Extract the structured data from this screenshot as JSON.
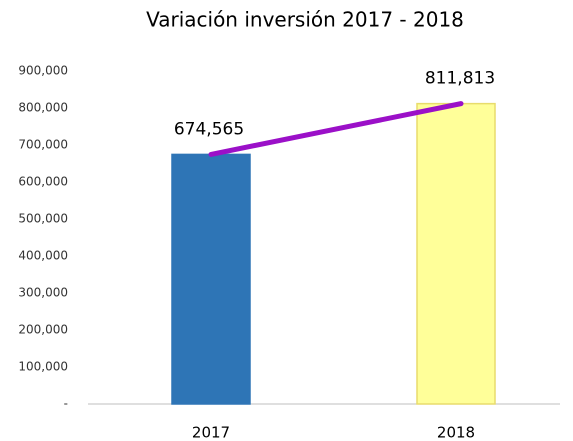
{
  "chart_data": {
    "type": "bar",
    "title": "Variación inversión 2017 - 2018",
    "categories": [
      "2017",
      "2018"
    ],
    "values": [
      674565,
      811813
    ],
    "value_labels": [
      "674,565",
      "811,813"
    ],
    "colors": [
      "#2e75b6",
      "#ffff99"
    ],
    "edgecolors": [
      "#2e75b6",
      "#e8dc6c"
    ],
    "line_color": "#9b10c8",
    "ylim": [
      0,
      900000
    ],
    "yticks": [
      {
        "value": 0,
        "label": "-"
      },
      {
        "value": 100000,
        "label": "100,000"
      },
      {
        "value": 200000,
        "label": "200,000"
      },
      {
        "value": 300000,
        "label": "300,000"
      },
      {
        "value": 400000,
        "label": "400,000"
      },
      {
        "value": 500000,
        "label": "500,000"
      },
      {
        "value": 600000,
        "label": "600,000"
      },
      {
        "value": 700000,
        "label": "700,000"
      },
      {
        "value": 800000,
        "label": "800,000"
      },
      {
        "value": 900000,
        "label": "900,000"
      }
    ],
    "grid": false
  }
}
